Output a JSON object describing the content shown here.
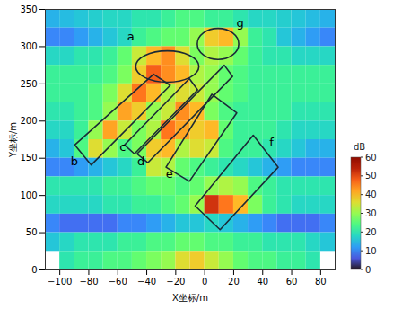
{
  "chart_data": {
    "type": "heatmap",
    "x_label": "X坐标/m",
    "y_label": "Y坐标/m",
    "xlim": [
      -110,
      90
    ],
    "xticks": [
      -100,
      -80,
      -60,
      -40,
      -20,
      0,
      20,
      40,
      60,
      80
    ],
    "ylim": [
      0,
      350
    ],
    "yticks": [
      0,
      50,
      100,
      150,
      200,
      250,
      300,
      350
    ],
    "cells": {
      "x": [
        -105,
        -95,
        -85,
        -75,
        -65,
        -55,
        -45,
        -35,
        -25,
        -15,
        -5,
        5,
        15,
        25,
        35,
        45,
        55,
        65,
        75,
        85
      ],
      "y": [
        337.5,
        312.5,
        287.5,
        262.5,
        237.5,
        212.5,
        187.5,
        162.5,
        137.5,
        112.5,
        87.5,
        62.5,
        37.5,
        12.5
      ],
      "values": [
        [
          14,
          15,
          16,
          17,
          18,
          18,
          20,
          20,
          22,
          24,
          24,
          22,
          22,
          20,
          18,
          18,
          17,
          16,
          15,
          14
        ],
        [
          10,
          10,
          12,
          14,
          16,
          18,
          22,
          24,
          26,
          26,
          30,
          38,
          40,
          30,
          22,
          20,
          16,
          14,
          12,
          10
        ],
        [
          18,
          18,
          20,
          20,
          22,
          26,
          34,
          40,
          44,
          36,
          28,
          32,
          30,
          26,
          22,
          20,
          20,
          18,
          18,
          18
        ],
        [
          22,
          22,
          22,
          22,
          24,
          28,
          38,
          48,
          44,
          40,
          32,
          30,
          26,
          24,
          22,
          22,
          22,
          22,
          22,
          22
        ],
        [
          22,
          22,
          22,
          24,
          28,
          36,
          46,
          40,
          32,
          36,
          34,
          30,
          26,
          24,
          22,
          22,
          22,
          22,
          22,
          22
        ],
        [
          20,
          20,
          22,
          24,
          30,
          42,
          38,
          30,
          34,
          44,
          40,
          28,
          24,
          22,
          22,
          22,
          22,
          20,
          20,
          20
        ],
        [
          18,
          18,
          22,
          30,
          42,
          34,
          28,
          32,
          46,
          42,
          38,
          40,
          26,
          22,
          22,
          22,
          20,
          18,
          18,
          18
        ],
        [
          14,
          16,
          24,
          36,
          30,
          24,
          28,
          38,
          40,
          32,
          36,
          34,
          24,
          22,
          22,
          20,
          18,
          16,
          14,
          14
        ],
        [
          10,
          10,
          12,
          14,
          16,
          18,
          22,
          34,
          32,
          26,
          24,
          22,
          20,
          18,
          16,
          14,
          12,
          10,
          10,
          10
        ],
        [
          20,
          20,
          20,
          20,
          22,
          22,
          24,
          26,
          26,
          24,
          26,
          30,
          32,
          30,
          24,
          22,
          20,
          20,
          20,
          20
        ],
        [
          18,
          18,
          18,
          18,
          20,
          20,
          22,
          22,
          24,
          26,
          30,
          52,
          46,
          40,
          28,
          22,
          20,
          18,
          18,
          18
        ],
        [
          10,
          8,
          8,
          8,
          8,
          10,
          10,
          12,
          14,
          16,
          16,
          18,
          16,
          14,
          12,
          10,
          8,
          8,
          8,
          10
        ],
        [
          16,
          18,
          20,
          20,
          20,
          22,
          22,
          24,
          24,
          26,
          26,
          24,
          24,
          22,
          22,
          20,
          20,
          20,
          18,
          16
        ],
        [
          null,
          20,
          22,
          22,
          24,
          24,
          26,
          28,
          30,
          36,
          38,
          34,
          30,
          26,
          24,
          24,
          22,
          22,
          20,
          null
        ]
      ]
    },
    "colorbar": {
      "title": "dB",
      "range": [
        0,
        60
      ],
      "ticks": [
        0,
        10,
        20,
        30,
        40,
        50,
        60
      ]
    },
    "regions": [
      {
        "label": "a",
        "label_xy": [
          -51,
          313
        ],
        "ellipse": {
          "cx": -25.5,
          "cy": 272.7,
          "rx": 21.8,
          "ry": 21
        }
      },
      {
        "label": "b",
        "label_xy": [
          -90,
          146
        ],
        "points": [
          [
            -89.7,
            168
          ],
          [
            -35.3,
            263
          ],
          [
            -23.8,
            248
          ],
          [
            -78.3,
            141
          ]
        ]
      },
      {
        "label": "c",
        "label_xy": [
          -56.5,
          165
        ],
        "points": [
          [
            -55.3,
            168
          ],
          [
            -10.6,
            257
          ],
          [
            -4.9,
            242
          ],
          [
            -48.5,
            156
          ]
        ]
      },
      {
        "label": "d",
        "label_xy": [
          -44,
          146
        ],
        "points": [
          [
            -46.7,
            156
          ],
          [
            13.5,
            275
          ],
          [
            19.2,
            260
          ],
          [
            -39.3,
            144
          ]
        ]
      },
      {
        "label": "e",
        "label_xy": [
          -24.4,
          129
        ],
        "points": [
          [
            -26.7,
            138
          ],
          [
            4.9,
            236
          ],
          [
            22.1,
            211
          ],
          [
            -10.6,
            119
          ]
        ]
      },
      {
        "label": "f",
        "label_xy": [
          46,
          171
        ],
        "points": [
          [
            -6.6,
            86
          ],
          [
            33.5,
            181
          ],
          [
            50.7,
            138
          ],
          [
            10.6,
            54
          ]
        ]
      },
      {
        "label": "g",
        "label_xy": [
          24.4,
          332
        ],
        "ellipse": {
          "cx": 9.5,
          "cy": 303,
          "rx": 14.3,
          "ry": 20.9
        }
      }
    ]
  }
}
